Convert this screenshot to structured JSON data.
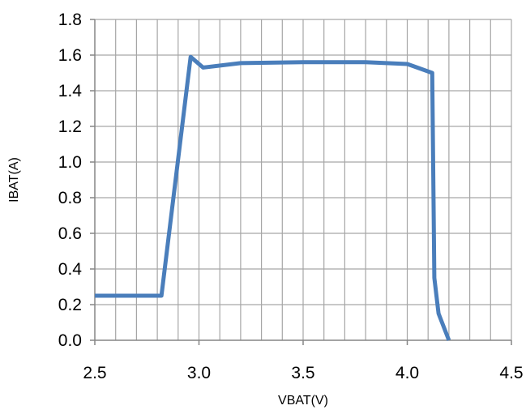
{
  "chart_data": {
    "type": "line",
    "title": "",
    "xlabel": "VBAT(V)",
    "ylabel": "IBAT(A)",
    "xlim": [
      2.5,
      4.5
    ],
    "ylim": [
      0.0,
      1.8
    ],
    "x_ticks": [
      2.5,
      3.0,
      3.5,
      4.0,
      4.5
    ],
    "x_tick_labels": [
      "2.5",
      "3.0",
      "3.5",
      "4.0",
      "4.5"
    ],
    "y_ticks": [
      0.0,
      0.2,
      0.4,
      0.6,
      0.8,
      1.0,
      1.2,
      1.4,
      1.6,
      1.8
    ],
    "y_tick_labels": [
      "0.0",
      "0.2",
      "0.4",
      "0.6",
      "0.8",
      "1.0",
      "1.2",
      "1.4",
      "1.6",
      "1.8"
    ],
    "x_minor_step": 0.1,
    "y_minor_step": 0.2,
    "grid": true,
    "legend": "none",
    "series": [
      {
        "color": "#4a7ebb",
        "x": [
          2.5,
          2.82,
          2.96,
          3.02,
          3.2,
          3.5,
          3.8,
          4.0,
          4.12,
          4.13,
          4.15,
          4.2
        ],
        "y": [
          0.25,
          0.25,
          1.59,
          1.53,
          1.555,
          1.56,
          1.56,
          1.55,
          1.5,
          0.35,
          0.15,
          0.0
        ]
      }
    ],
    "colors": {
      "grid": "#a6a6a6",
      "axis": "#868686",
      "line": "#4a7ebb"
    }
  }
}
